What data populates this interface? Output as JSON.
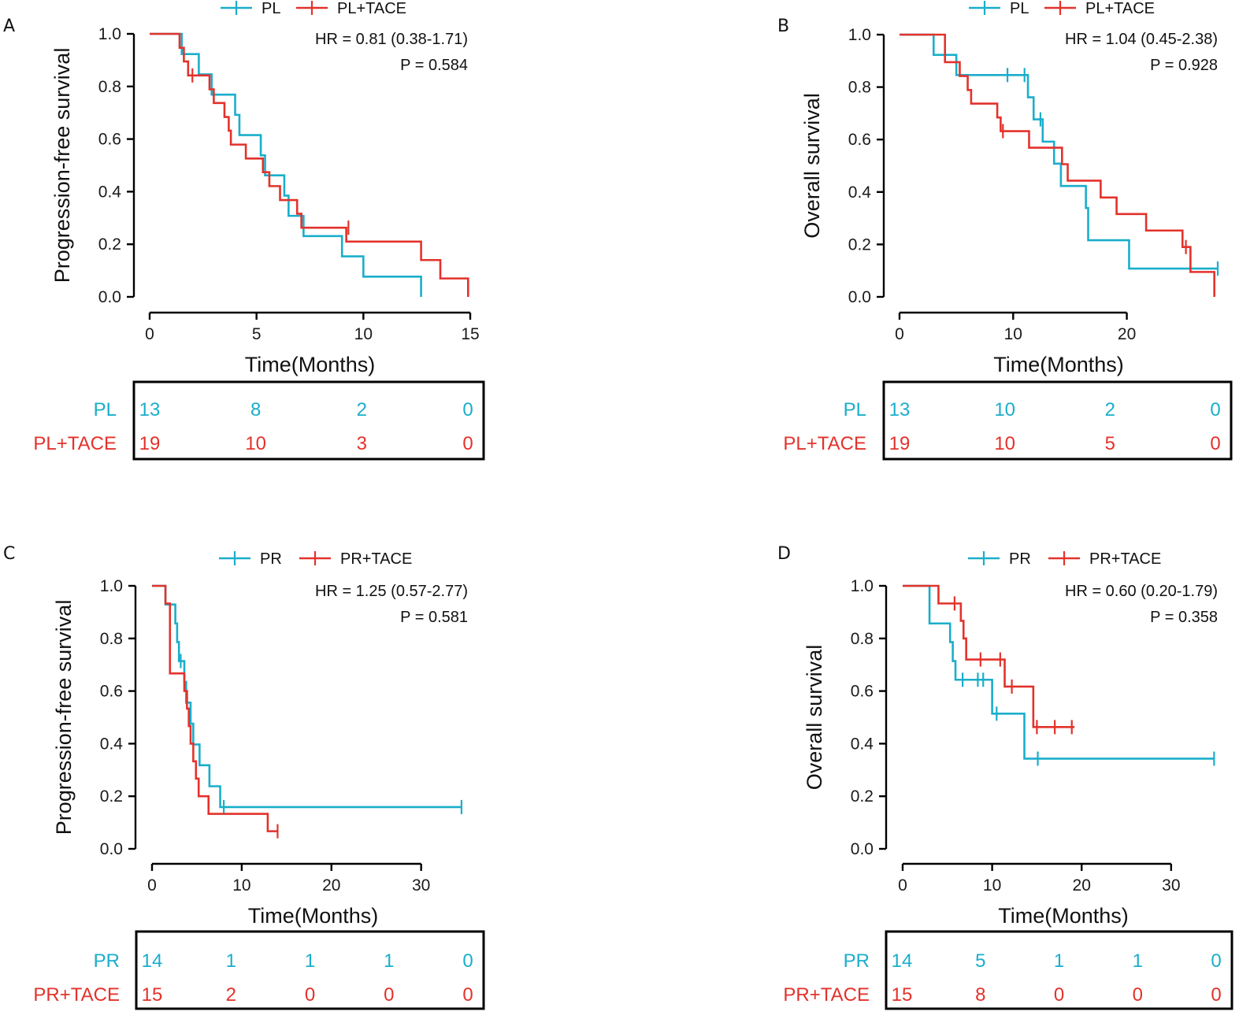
{
  "colors": {
    "arm1": "#1aaecb",
    "arm2": "#e3322b"
  },
  "chart_data": [
    {
      "panel": "A",
      "type": "line",
      "subtype": "kaplan-meier",
      "xlabel": "Time(Months)",
      "ylabel": "Progression-free survival",
      "xlim": [
        0,
        15
      ],
      "xticks": [
        0,
        5,
        10,
        15
      ],
      "ylim": [
        0,
        1
      ],
      "yticks": [
        "0.0",
        "0.2",
        "0.4",
        "0.6",
        "0.8",
        "1.0"
      ],
      "legend": [
        "PL",
        "PL+TACE"
      ],
      "hr_text": "HR = 0.81 (0.38-1.71)",
      "p_text": "P = 0.584",
      "series": [
        {
          "name": "PL",
          "color": "#1aaecb",
          "steps": [
            [
              0,
              1.0
            ],
            [
              1.5,
              0.923
            ],
            [
              2.3,
              0.846
            ],
            [
              2.9,
              0.769
            ],
            [
              4.0,
              0.692
            ],
            [
              4.2,
              0.615
            ],
            [
              5.2,
              0.538
            ],
            [
              5.4,
              0.462
            ],
            [
              6.3,
              0.385
            ],
            [
              6.5,
              0.308
            ],
            [
              7.2,
              0.231
            ],
            [
              9.0,
              0.154
            ],
            [
              10.0,
              0.077
            ],
            [
              12.7,
              0.0
            ]
          ],
          "censor": []
        },
        {
          "name": "PL+TACE",
          "color": "#e3322b",
          "steps": [
            [
              0,
              1.0
            ],
            [
              1.4,
              0.947
            ],
            [
              1.6,
              0.895
            ],
            [
              1.8,
              0.842
            ],
            [
              2.8,
              0.789
            ],
            [
              3.0,
              0.737
            ],
            [
              3.5,
              0.684
            ],
            [
              3.7,
              0.632
            ],
            [
              3.8,
              0.579
            ],
            [
              4.5,
              0.526
            ],
            [
              5.3,
              0.474
            ],
            [
              5.6,
              0.421
            ],
            [
              6.1,
              0.368
            ],
            [
              6.9,
              0.316
            ],
            [
              7.1,
              0.263
            ],
            [
              9.2,
              0.21
            ],
            [
              12.7,
              0.14
            ],
            [
              13.6,
              0.07
            ],
            [
              14.9,
              0.0
            ]
          ],
          "censor": [
            [
              2.0,
              0.842
            ],
            [
              9.3,
              0.263
            ]
          ]
        }
      ],
      "risk_table": {
        "rows": [
          {
            "label": "PL",
            "values": [
              "13",
              "8",
              "2",
              "0"
            ]
          },
          {
            "label": "PL+TACE",
            "values": [
              "19",
              "10",
              "3",
              "0"
            ]
          }
        ]
      }
    },
    {
      "panel": "B",
      "type": "line",
      "subtype": "kaplan-meier",
      "xlabel": "Time(Months)",
      "ylabel": "Overall survival",
      "xlim": [
        0,
        28
      ],
      "xticks": [
        0,
        10,
        20
      ],
      "ylim": [
        0,
        1
      ],
      "yticks": [
        "0.0",
        "0.2",
        "0.4",
        "0.6",
        "0.8",
        "1.0"
      ],
      "legend": [
        "PL",
        "PL+TACE"
      ],
      "hr_text": "HR = 1.04 (0.45-2.38)",
      "p_text": "P = 0.928",
      "series": [
        {
          "name": "PL",
          "color": "#1aaecb",
          "steps": [
            [
              0,
              1.0
            ],
            [
              3.0,
              0.923
            ],
            [
              5.0,
              0.846
            ],
            [
              11.3,
              0.761
            ],
            [
              11.8,
              0.677
            ],
            [
              12.6,
              0.592
            ],
            [
              13.6,
              0.508
            ],
            [
              14.2,
              0.423
            ],
            [
              16.4,
              0.339
            ],
            [
              16.6,
              0.216
            ],
            [
              20.2,
              0.108
            ]
          ],
          "censor": [
            [
              9.5,
              0.846
            ],
            [
              11.0,
              0.846
            ],
            [
              12.4,
              0.677
            ],
            [
              28.0,
              0.108
            ]
          ],
          "end": 28.0
        },
        {
          "name": "PL+TACE",
          "color": "#e3322b",
          "steps": [
            [
              0,
              1.0
            ],
            [
              4.0,
              0.895
            ],
            [
              5.3,
              0.842
            ],
            [
              6.0,
              0.789
            ],
            [
              6.3,
              0.737
            ],
            [
              8.6,
              0.684
            ],
            [
              8.9,
              0.632
            ],
            [
              11.4,
              0.569
            ],
            [
              14.3,
              0.506
            ],
            [
              14.8,
              0.443
            ],
            [
              17.7,
              0.379
            ],
            [
              19.1,
              0.316
            ],
            [
              21.7,
              0.253
            ],
            [
              24.9,
              0.19
            ],
            [
              25.6,
              0.095
            ],
            [
              27.7,
              0.0
            ]
          ],
          "censor": [
            [
              9.1,
              0.632
            ],
            [
              25.2,
              0.19
            ]
          ]
        }
      ],
      "risk_table": {
        "rows": [
          {
            "label": "PL",
            "values": [
              "13",
              "10",
              "2",
              "0"
            ]
          },
          {
            "label": "PL+TACE",
            "values": [
              "19",
              "10",
              "5",
              "0"
            ]
          }
        ]
      }
    },
    {
      "panel": "C",
      "type": "line",
      "subtype": "kaplan-meier",
      "xlabel": "Time(Months)",
      "ylabel": "Progression-free survival",
      "xlim": [
        0,
        36
      ],
      "xticks": [
        0,
        10,
        20,
        30
      ],
      "ylim": [
        0,
        1
      ],
      "yticks": [
        "0.0",
        "0.2",
        "0.4",
        "0.6",
        "0.8",
        "1.0"
      ],
      "legend": [
        "PR",
        "PR+TACE"
      ],
      "hr_text": "HR = 1.25 (0.57-2.77)",
      "p_text": "P = 0.581",
      "series": [
        {
          "name": "PR",
          "color": "#1aaecb",
          "steps": [
            [
              0,
              1.0
            ],
            [
              1.5,
              0.929
            ],
            [
              2.6,
              0.857
            ],
            [
              2.8,
              0.786
            ],
            [
              3.0,
              0.714
            ],
            [
              3.6,
              0.635
            ],
            [
              3.8,
              0.556
            ],
            [
              4.3,
              0.476
            ],
            [
              4.6,
              0.397
            ],
            [
              5.3,
              0.318
            ],
            [
              6.4,
              0.238
            ],
            [
              7.6,
              0.159
            ]
          ],
          "censor": [
            [
              3.2,
              0.714
            ],
            [
              8.0,
              0.159
            ],
            [
              34.5,
              0.159
            ]
          ],
          "end": 34.5
        },
        {
          "name": "PR+TACE",
          "color": "#e3322b",
          "steps": [
            [
              0,
              1.0
            ],
            [
              1.5,
              0.933
            ],
            [
              2.0,
              0.667
            ],
            [
              3.6,
              0.6
            ],
            [
              3.9,
              0.533
            ],
            [
              4.1,
              0.467
            ],
            [
              4.3,
              0.4
            ],
            [
              4.6,
              0.333
            ],
            [
              4.9,
              0.267
            ],
            [
              5.2,
              0.2
            ],
            [
              6.3,
              0.133
            ],
            [
              12.9,
              0.067
            ]
          ],
          "censor": [
            [
              14.0,
              0.067
            ]
          ],
          "end": 14.0
        }
      ],
      "risk_table": {
        "rows": [
          {
            "label": "PR",
            "values": [
              "14",
              "1",
              "1",
              "1",
              "0"
            ]
          },
          {
            "label": "PR+TACE",
            "values": [
              "15",
              "2",
              "0",
              "0",
              "0"
            ]
          }
        ]
      }
    },
    {
      "panel": "D",
      "type": "line",
      "subtype": "kaplan-meier",
      "xlabel": "Time(Months)",
      "ylabel": "Overall survival",
      "xlim": [
        0,
        36
      ],
      "xticks": [
        0,
        10,
        20,
        30
      ],
      "ylim": [
        0,
        1
      ],
      "yticks": [
        "0.0",
        "0.2",
        "0.4",
        "0.6",
        "0.8",
        "1.0"
      ],
      "legend": [
        "PR",
        "PR+TACE"
      ],
      "hr_text": "HR = 0.60 (0.20-1.79)",
      "p_text": "P = 0.358",
      "series": [
        {
          "name": "PR",
          "color": "#1aaecb",
          "steps": [
            [
              0,
              1.0
            ],
            [
              3.0,
              0.857
            ],
            [
              5.3,
              0.786
            ],
            [
              5.6,
              0.714
            ],
            [
              5.9,
              0.643
            ],
            [
              10.0,
              0.514
            ],
            [
              13.6,
              0.343
            ]
          ],
          "censor": [
            [
              6.7,
              0.643
            ],
            [
              8.4,
              0.643
            ],
            [
              9.0,
              0.643
            ],
            [
              10.5,
              0.514
            ],
            [
              15.1,
              0.343
            ],
            [
              34.8,
              0.343
            ]
          ],
          "end": 34.8
        },
        {
          "name": "PR+TACE",
          "color": "#e3322b",
          "steps": [
            [
              0,
              1.0
            ],
            [
              4.0,
              0.933
            ],
            [
              6.5,
              0.867
            ],
            [
              6.8,
              0.8
            ],
            [
              7.1,
              0.72
            ],
            [
              11.4,
              0.617
            ],
            [
              14.6,
              0.463
            ]
          ],
          "censor": [
            [
              5.8,
              0.933
            ],
            [
              8.7,
              0.72
            ],
            [
              10.9,
              0.72
            ],
            [
              12.2,
              0.617
            ],
            [
              15.0,
              0.463
            ],
            [
              17.0,
              0.463
            ],
            [
              18.9,
              0.463
            ]
          ],
          "end": 19.2
        }
      ],
      "risk_table": {
        "rows": [
          {
            "label": "PR",
            "values": [
              "14",
              "5",
              "1",
              "1",
              "0"
            ]
          },
          {
            "label": "PR+TACE",
            "values": [
              "15",
              "8",
              "0",
              "0",
              "0"
            ]
          }
        ]
      }
    }
  ]
}
